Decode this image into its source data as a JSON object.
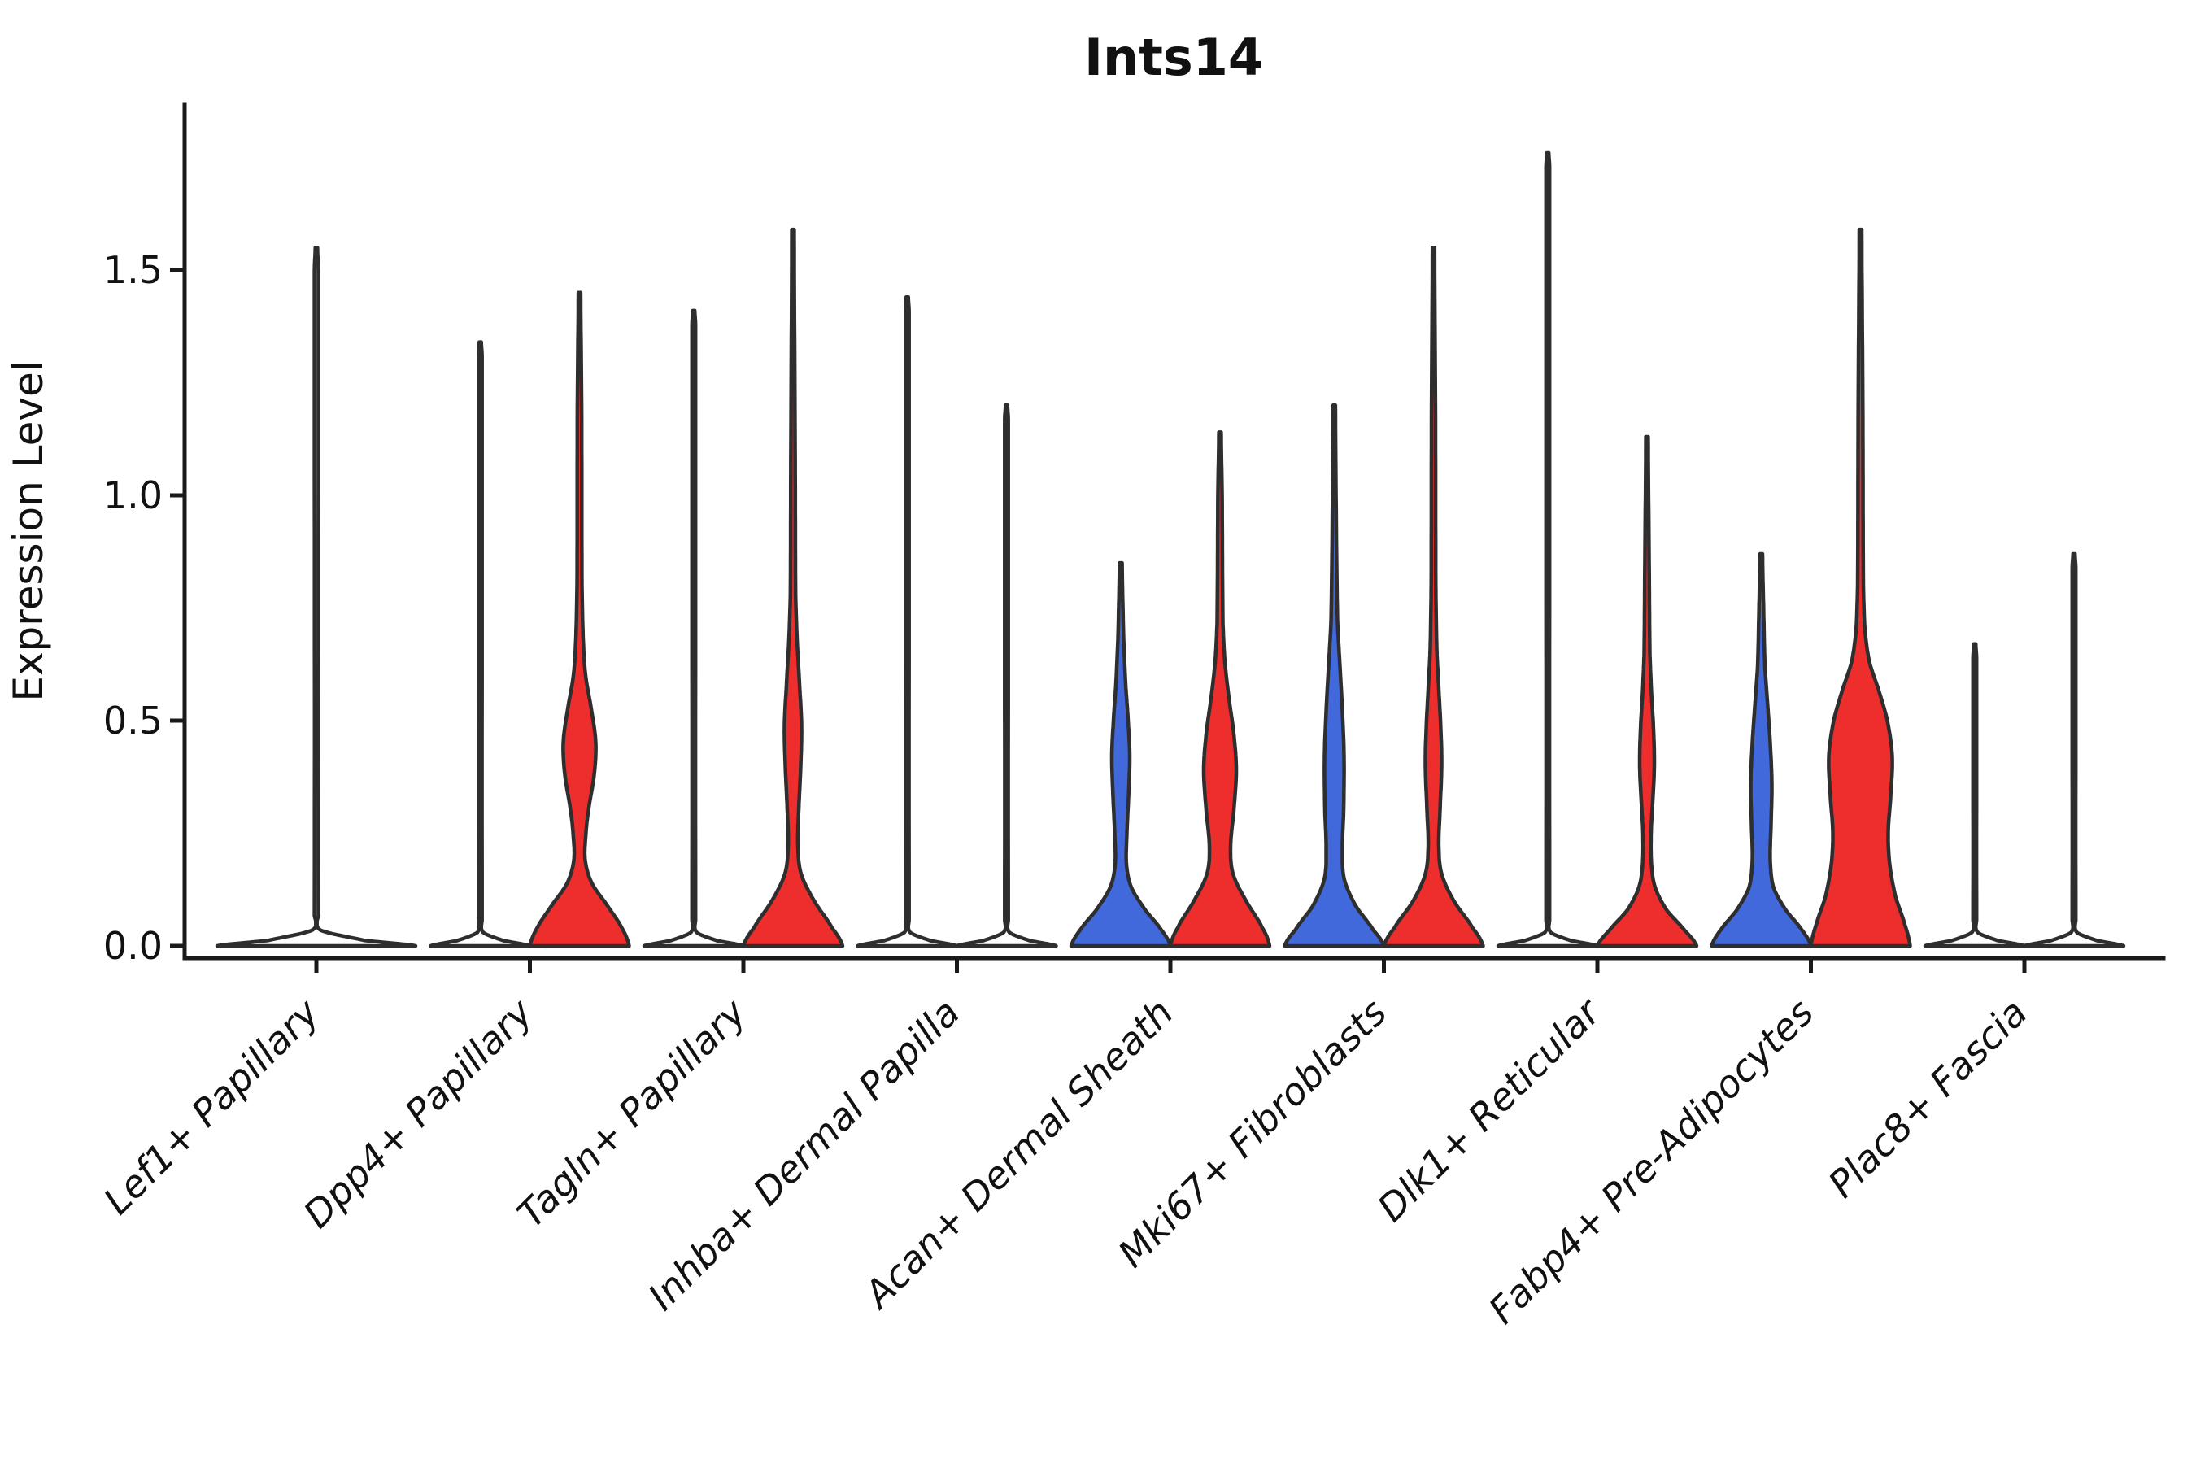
{
  "title": "Ints14",
  "y_axis": {
    "label": "Expression Level",
    "ticks": [
      "0.0",
      "0.5",
      "1.0",
      "1.5"
    ],
    "tick_values": [
      0,
      0.5,
      1.0,
      1.5
    ]
  },
  "colors": {
    "blue": "#4169DC",
    "red": "#EE2D2D",
    "outline": "#2E2E2E",
    "axis": "#1A1A1A"
  },
  "chart_data": {
    "type": "violin",
    "title": "Ints14",
    "xlabel": "",
    "ylabel": "Expression Level",
    "ylim": [
      -0.07,
      1.88
    ],
    "yticks": [
      0,
      0.5,
      1.0,
      1.5
    ],
    "grid": false,
    "legend": "none",
    "categories": [
      "Lef1+ Papillary",
      "Dpp4+ Papillary",
      "Tagln+ Papillary",
      "Inhba+ Dermal Papilla",
      "Acan+ Dermal Sheath",
      "Mki67+ Fibroblasts",
      "Dlk1+ Reticular",
      "Fabp4+ Pre-Adipocytes",
      "Plac8+ Fascia"
    ],
    "series": [
      {
        "category": "Lef1+ Papillary",
        "violins": [
          {
            "position": "full",
            "color": "none",
            "max_expression": 1.55,
            "width_profile": [
              [
                0,
                122
              ],
              [
                0.012,
                60
              ],
              [
                0.035,
                5
              ],
              [
                0.07,
                2.4
              ],
              [
                1.5,
                2.4
              ],
              [
                1.55,
                1.3
              ]
            ]
          }
        ]
      },
      {
        "category": "Dpp4+ Papillary",
        "violins": [
          {
            "position": "left",
            "color": "none",
            "max_expression": 1.34,
            "width_profile": [
              [
                0,
                61
              ],
              [
                0.012,
                28
              ],
              [
                0.03,
                3.5
              ],
              [
                0.06,
                2.2
              ],
              [
                1.31,
                2.2
              ],
              [
                1.34,
                1.2
              ]
            ]
          },
          {
            "position": "right",
            "color": "red",
            "max_expression": 1.45,
            "width_profile": [
              [
                0,
                61
              ],
              [
                0.04,
                52
              ],
              [
                0.09,
                34
              ],
              [
                0.14,
                15
              ],
              [
                0.19,
                7
              ],
              [
                0.24,
                7.5
              ],
              [
                0.3,
                11
              ],
              [
                0.38,
                18
              ],
              [
                0.45,
                20
              ],
              [
                0.52,
                15
              ],
              [
                0.6,
                7.5
              ],
              [
                0.68,
                4.5
              ],
              [
                0.8,
                3
              ],
              [
                1.2,
                2.6
              ],
              [
                1.45,
                1.4
              ]
            ]
          }
        ]
      },
      {
        "category": "Tagln+ Papillary",
        "violins": [
          {
            "position": "left",
            "color": "none",
            "max_expression": 1.41,
            "width_profile": [
              [
                0,
                61
              ],
              [
                0.012,
                28
              ],
              [
                0.03,
                3.5
              ],
              [
                0.06,
                2.2
              ],
              [
                1.38,
                2.2
              ],
              [
                1.41,
                1.2
              ]
            ]
          },
          {
            "position": "right",
            "color": "red",
            "max_expression": 1.59,
            "width_profile": [
              [
                0,
                61
              ],
              [
                0.04,
                48
              ],
              [
                0.1,
                26
              ],
              [
                0.16,
                10
              ],
              [
                0.22,
                6
              ],
              [
                0.3,
                7
              ],
              [
                0.4,
                9.5
              ],
              [
                0.49,
                10.5
              ],
              [
                0.58,
                8
              ],
              [
                0.68,
                5
              ],
              [
                0.78,
                3.2
              ],
              [
                1.1,
                2.6
              ],
              [
                1.59,
                1.4
              ]
            ]
          }
        ]
      },
      {
        "category": "Inhba+ Dermal Papilla",
        "violins": [
          {
            "position": "left",
            "color": "none",
            "max_expression": 1.44,
            "width_profile": [
              [
                0,
                61
              ],
              [
                0.012,
                28
              ],
              [
                0.03,
                3.5
              ],
              [
                0.06,
                2.2
              ],
              [
                1.41,
                2.2
              ],
              [
                1.44,
                1.2
              ]
            ]
          },
          {
            "position": "right",
            "color": "none",
            "max_expression": 1.2,
            "width_profile": [
              [
                0,
                61
              ],
              [
                0.012,
                28
              ],
              [
                0.03,
                3.5
              ],
              [
                0.06,
                2.2
              ],
              [
                1.17,
                2.2
              ],
              [
                1.2,
                1.2
              ]
            ]
          }
        ]
      },
      {
        "category": "Acan+ Dermal Sheath",
        "violins": [
          {
            "position": "left",
            "color": "blue",
            "max_expression": 0.85,
            "width_profile": [
              [
                0,
                61
              ],
              [
                0.035,
                50
              ],
              [
                0.08,
                30
              ],
              [
                0.13,
                13
              ],
              [
                0.18,
                7
              ],
              [
                0.25,
                7.5
              ],
              [
                0.33,
                9.5
              ],
              [
                0.42,
                11
              ],
              [
                0.5,
                9
              ],
              [
                0.58,
                6
              ],
              [
                0.68,
                3.5
              ],
              [
                0.85,
                1.6
              ]
            ]
          },
          {
            "position": "right",
            "color": "red",
            "max_expression": 1.14,
            "width_profile": [
              [
                0,
                61
              ],
              [
                0.04,
                52
              ],
              [
                0.1,
                32
              ],
              [
                0.16,
                16
              ],
              [
                0.22,
                13
              ],
              [
                0.3,
                17
              ],
              [
                0.39,
                20
              ],
              [
                0.47,
                17
              ],
              [
                0.55,
                11
              ],
              [
                0.63,
                6
              ],
              [
                0.72,
                3.5
              ],
              [
                1.0,
                2.6
              ],
              [
                1.14,
                1.4
              ]
            ]
          }
        ]
      },
      {
        "category": "Mki67+ Fibroblasts",
        "violins": [
          {
            "position": "left",
            "color": "blue",
            "max_expression": 1.2,
            "width_profile": [
              [
                0,
                61
              ],
              [
                0.035,
                48
              ],
              [
                0.09,
                26
              ],
              [
                0.15,
                12
              ],
              [
                0.22,
                10
              ],
              [
                0.3,
                11.5
              ],
              [
                0.42,
                12
              ],
              [
                0.52,
                10
              ],
              [
                0.62,
                7
              ],
              [
                0.72,
                4
              ],
              [
                0.9,
                2.6
              ],
              [
                1.2,
                1.4
              ]
            ]
          },
          {
            "position": "right",
            "color": "red",
            "max_expression": 1.55,
            "width_profile": [
              [
                0,
                61
              ],
              [
                0.04,
                48
              ],
              [
                0.1,
                25
              ],
              [
                0.16,
                10
              ],
              [
                0.22,
                6.5
              ],
              [
                0.3,
                8
              ],
              [
                0.4,
                10
              ],
              [
                0.48,
                9
              ],
              [
                0.57,
                6.5
              ],
              [
                0.66,
                4
              ],
              [
                0.8,
                2.8
              ],
              [
                1.2,
                2.4
              ],
              [
                1.55,
                1.3
              ]
            ]
          }
        ]
      },
      {
        "category": "Dlk1+ Reticular",
        "violins": [
          {
            "position": "left",
            "color": "none",
            "max_expression": 1.76,
            "width_profile": [
              [
                0,
                61
              ],
              [
                0.012,
                28
              ],
              [
                0.03,
                3.5
              ],
              [
                0.06,
                2.2
              ],
              [
                1.73,
                2.2
              ],
              [
                1.76,
                1.2
              ]
            ]
          },
          {
            "position": "right",
            "color": "red",
            "max_expression": 1.13,
            "width_profile": [
              [
                0,
                61
              ],
              [
                0.035,
                46
              ],
              [
                0.08,
                24
              ],
              [
                0.13,
                10
              ],
              [
                0.18,
                5.5
              ],
              [
                0.25,
                5
              ],
              [
                0.32,
                7
              ],
              [
                0.4,
                9
              ],
              [
                0.48,
                8
              ],
              [
                0.56,
                5.5
              ],
              [
                0.65,
                3.5
              ],
              [
                0.85,
                2.6
              ],
              [
                1.13,
                1.4
              ]
            ]
          }
        ]
      },
      {
        "category": "Fabp4+ Pre-Adipocytes",
        "violins": [
          {
            "position": "left",
            "color": "blue",
            "max_expression": 0.87,
            "width_profile": [
              [
                0,
                61
              ],
              [
                0.035,
                50
              ],
              [
                0.08,
                30
              ],
              [
                0.13,
                15
              ],
              [
                0.19,
                11
              ],
              [
                0.27,
                12
              ],
              [
                0.36,
                13
              ],
              [
                0.45,
                11
              ],
              [
                0.53,
                8
              ],
              [
                0.62,
                4.5
              ],
              [
                0.75,
                2.8
              ],
              [
                0.87,
                1.5
              ]
            ]
          },
          {
            "position": "right",
            "color": "red",
            "max_expression": 1.59,
            "width_profile": [
              [
                0,
                61
              ],
              [
                0.05,
                54
              ],
              [
                0.11,
                43
              ],
              [
                0.18,
                36
              ],
              [
                0.25,
                34
              ],
              [
                0.33,
                37
              ],
              [
                0.42,
                39
              ],
              [
                0.5,
                33
              ],
              [
                0.57,
                22
              ],
              [
                0.63,
                11
              ],
              [
                0.7,
                5.5
              ],
              [
                0.8,
                3.5
              ],
              [
                1.2,
                2.8
              ],
              [
                1.59,
                1.5
              ]
            ]
          }
        ]
      },
      {
        "category": "Plac8+ Fascia",
        "violins": [
          {
            "position": "left",
            "color": "none",
            "max_expression": 0.67,
            "width_profile": [
              [
                0,
                61
              ],
              [
                0.012,
                28
              ],
              [
                0.03,
                3.5
              ],
              [
                0.06,
                2.2
              ],
              [
                0.64,
                2.2
              ],
              [
                0.67,
                1.2
              ]
            ]
          },
          {
            "position": "right",
            "color": "none",
            "max_expression": 0.87,
            "width_profile": [
              [
                0,
                61
              ],
              [
                0.012,
                28
              ],
              [
                0.03,
                3.5
              ],
              [
                0.06,
                2.2
              ],
              [
                0.84,
                2.2
              ],
              [
                0.87,
                1.2
              ]
            ]
          }
        ]
      }
    ]
  }
}
